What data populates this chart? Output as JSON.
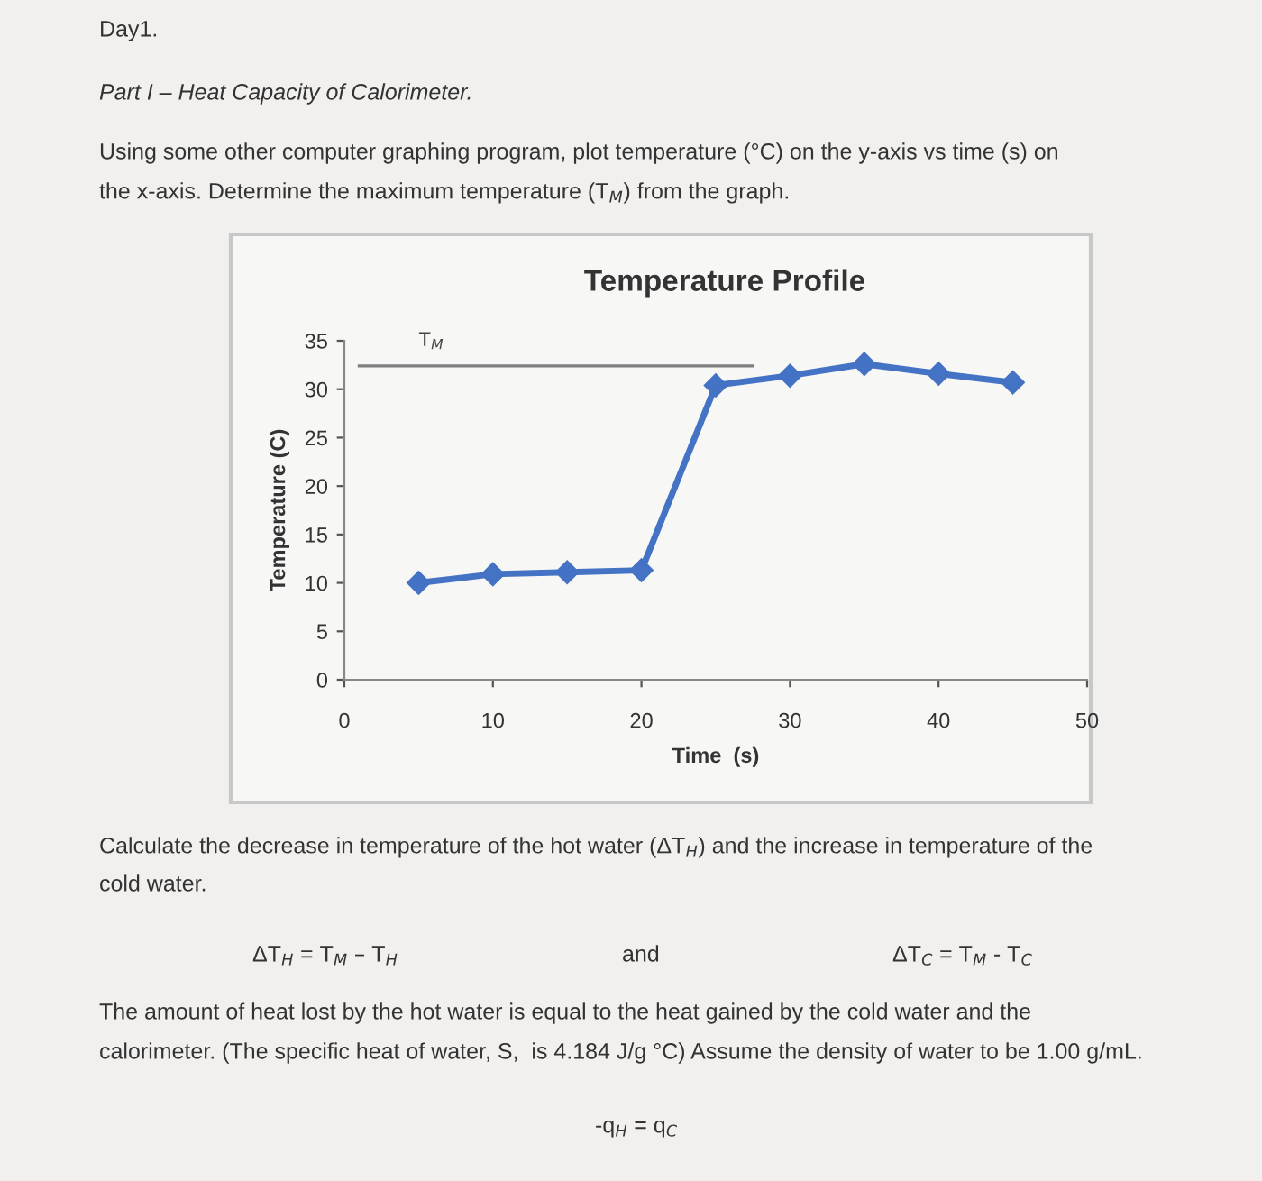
{
  "chart_data": {
    "type": "line",
    "title": "Temperature Profile",
    "xlabel": "Time  (s)",
    "ylabel": "Temperature (C)",
    "x": [
      5,
      10,
      15,
      20,
      25,
      30,
      35,
      40,
      45
    ],
    "series": [
      {
        "color": "#4472c4",
        "values": [
          10.0,
          10.9,
          11.1,
          11.3,
          30.4,
          31.4,
          32.6,
          31.6,
          30.7
        ]
      }
    ],
    "xlim": [
      0,
      50
    ],
    "xticks": [
      0,
      10,
      20,
      30,
      40,
      50
    ],
    "ylim": [
      0,
      35
    ],
    "yticks": [
      0,
      5,
      10,
      15,
      20,
      25,
      30,
      35
    ],
    "marker": "diamond",
    "line_style": "solid",
    "grid": false,
    "legend": false,
    "ref_lines": [
      {
        "axis": "y",
        "value": 32.4,
        "label": "T$_{M}$",
        "color": "#7f7f7f"
      }
    ],
    "annotations": [
      "Day1.",
      "Part I – Heat Capacity of Calorimeter.",
      "Using some other computer graphing program, plot temperature (°C) on the y-axis vs time (s) on",
      "the x-axis. Determine the maximum temperature (T$_{M}$) from the graph.",
      "Calculate the decrease in temperature of the hot water (ΔT$_{H}$) and the increase in temperature of the",
      "cold water.",
      "ΔT$_{H}$ = T$_{M}$ – T$_{H}$",
      "and",
      "ΔT$_{C}$ = T$_{M}$ - T$_{C}$",
      "The amount of heat lost by the hot water is equal to the heat gained by the cold water and the",
      "calorimeter. (The specific heat of water, S,  is 4.184 J/g °C) Assume the density of water to be 1.00 g/mL.",
      "-q$_{H}$ = q$_{C}$"
    ]
  }
}
